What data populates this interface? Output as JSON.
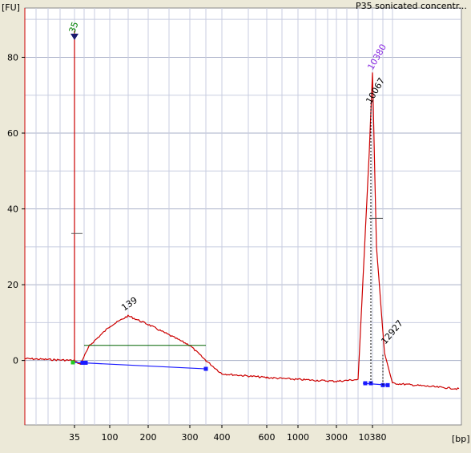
{
  "window": {
    "title": "P35 sonicated concentr..."
  },
  "chart_data": {
    "type": "line",
    "title": "P35 sonicated concentr...",
    "ylabel": "[FU]",
    "xlabel": "[bp]",
    "ylim": [
      -17,
      93
    ],
    "y_ticks": [
      0,
      20,
      40,
      60,
      80
    ],
    "x_ticks": [
      "35",
      "100",
      "200",
      "300",
      "400",
      "600",
      "1000",
      "3000",
      "10380"
    ],
    "x_scale": "size-standard (nonlinear)",
    "grid": true,
    "series": [
      {
        "color": "#cc0000",
        "points": [
          [
            "<35",
            0.5
          ],
          [
            "35",
            0.0
          ],
          [
            "35",
            87.0
          ],
          [
            "35",
            0.0
          ],
          [
            "50",
            -1.0
          ],
          [
            "70",
            4.0
          ],
          [
            "100",
            9.0
          ],
          [
            "139",
            11.8
          ],
          [
            "200",
            9.5
          ],
          [
            "300",
            4.0
          ],
          [
            "350",
            0.0
          ],
          [
            "400",
            -3.5
          ],
          [
            "600",
            -4.5
          ],
          [
            "1000",
            -5.0
          ],
          [
            "3000",
            -5.5
          ],
          [
            "8000",
            -5.0
          ],
          [
            "10067",
            55.0
          ],
          [
            "10380",
            76.0
          ],
          [
            "11000",
            30.0
          ],
          [
            "12927",
            2.0
          ],
          [
            "15000",
            -6.0
          ],
          [
            ">15000",
            -7.5
          ]
        ]
      }
    ],
    "annotations": [
      {
        "label": "35",
        "color": "#008000",
        "marker": "triangle",
        "y": 88
      },
      {
        "label": "139",
        "color": "#000000",
        "y": 11.8
      },
      {
        "label": "10380",
        "color": "#8a2be2",
        "y": 76
      },
      {
        "label": "10067",
        "color": "#000000",
        "y": 70
      },
      {
        "label": "12927",
        "color": "#000000",
        "y": 3.5
      }
    ],
    "region": {
      "from": "60",
      "to": "350",
      "color": "#1a1aff",
      "level_line_color": "#006400"
    }
  }
}
